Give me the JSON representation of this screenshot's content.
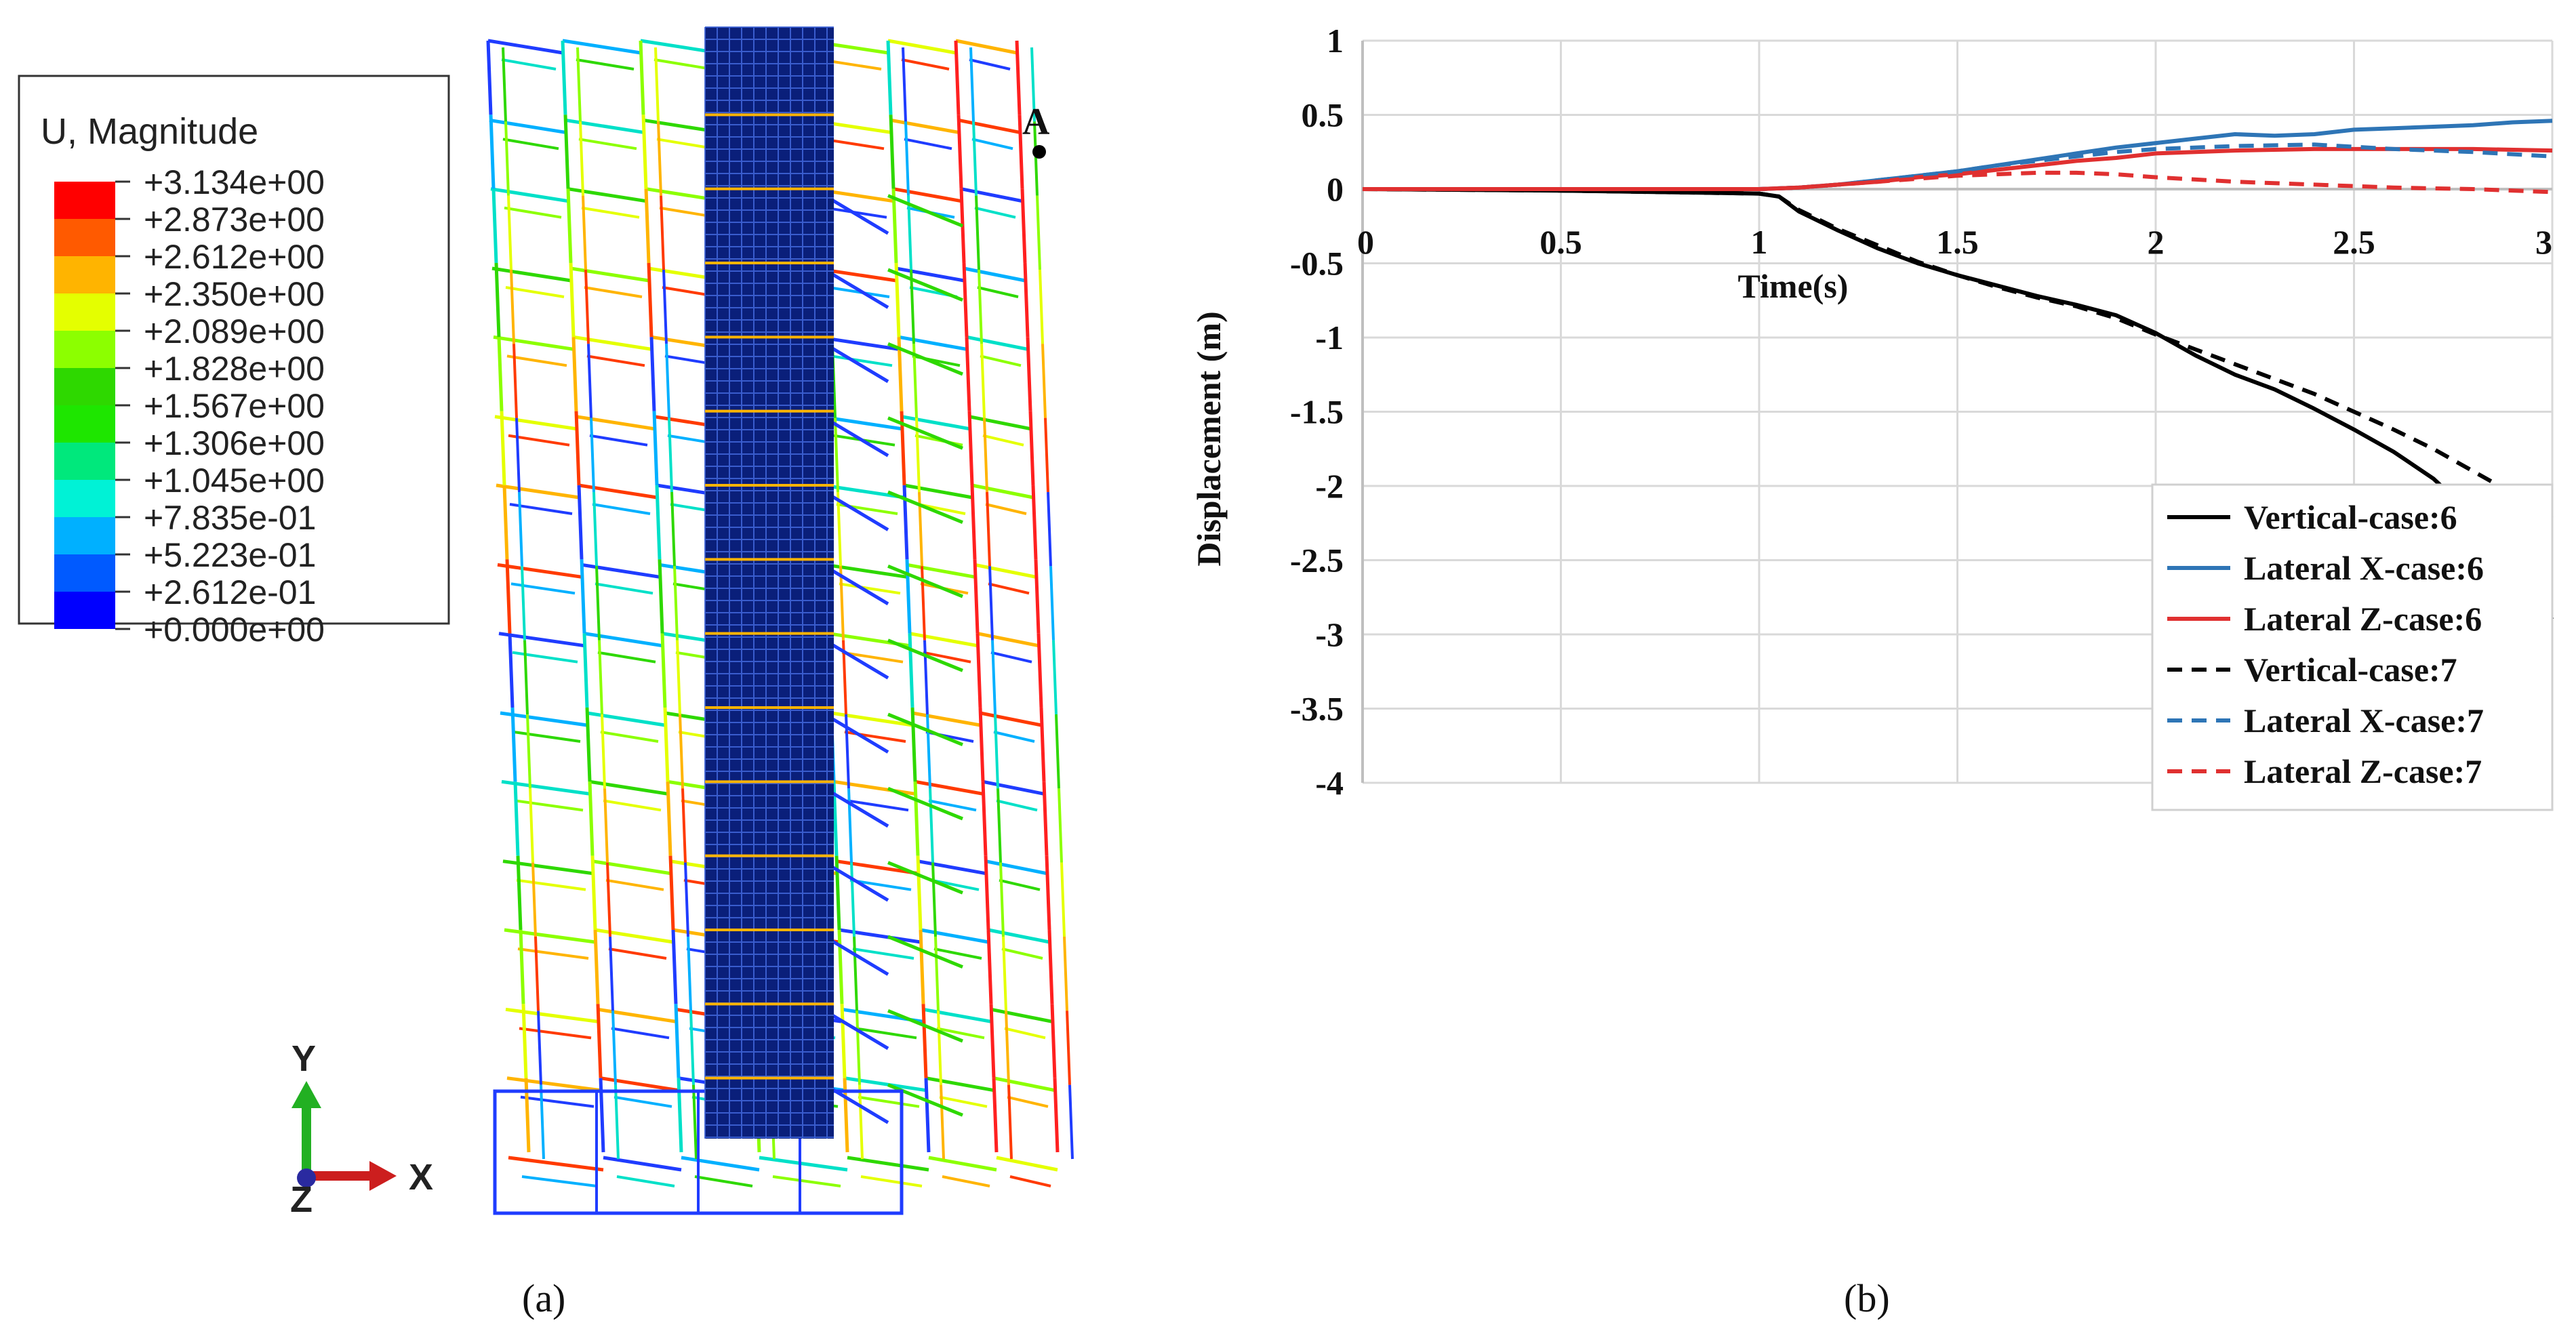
{
  "panel_a": {
    "caption": "(a)",
    "legend": {
      "title": "U, Magnitude",
      "levels": [
        "+3.134e+00",
        "+2.873e+00",
        "+2.612e+00",
        "+2.350e+00",
        "+2.089e+00",
        "+1.828e+00",
        "+1.567e+00",
        "+1.306e+00",
        "+1.045e+00",
        "+7.835e-01",
        "+5.223e-01",
        "+2.612e-01",
        "+0.000e+00"
      ],
      "colors": [
        "#ff0000",
        "#ff5a00",
        "#ffb400",
        "#e4ff00",
        "#8cff00",
        "#2ed800",
        "#1ee600",
        "#00e87c",
        "#00f2d6",
        "#00b0ff",
        "#005aff",
        "#0000ff"
      ]
    },
    "point_label": "A",
    "triad": {
      "y": "Y",
      "x": "X",
      "z": "Z"
    }
  },
  "panel_b": {
    "caption": "(b)",
    "chart_data": {
      "type": "line",
      "title": "",
      "xlabel": "Time(s)",
      "ylabel": "Displacement (m)",
      "xlim": [
        0,
        3
      ],
      "ylim": [
        -4,
        1
      ],
      "xticks": [
        "0",
        "0.5",
        "1",
        "1.5",
        "2",
        "2.5",
        "3"
      ],
      "yticks": [
        "1",
        "0.5",
        "0",
        "-0.5",
        "-1",
        "-1.5",
        "-2",
        "-2.5",
        "-3",
        "-3.5",
        "-4"
      ],
      "grid": true,
      "legend_position": "bottom-right",
      "series": [
        {
          "name": "Vertical-case:6",
          "color": "#000000",
          "dash": "solid",
          "x": [
            0,
            0.5,
            1.0,
            1.05,
            1.1,
            1.2,
            1.3,
            1.4,
            1.5,
            1.6,
            1.7,
            1.8,
            1.9,
            2.0,
            2.1,
            2.2,
            2.3,
            2.4,
            2.5,
            2.6,
            2.7,
            2.8,
            2.9,
            3.0
          ],
          "y": [
            0,
            -0.01,
            -0.03,
            -0.05,
            -0.15,
            -0.28,
            -0.4,
            -0.5,
            -0.58,
            -0.65,
            -0.72,
            -0.78,
            -0.85,
            -0.97,
            -1.12,
            -1.25,
            -1.35,
            -1.48,
            -1.62,
            -1.77,
            -1.95,
            -2.2,
            -2.55,
            -2.9
          ]
        },
        {
          "name": "Lateral X-case:6",
          "color": "#2e75b6",
          "dash": "solid",
          "x": [
            0,
            0.5,
            1.0,
            1.1,
            1.2,
            1.3,
            1.4,
            1.5,
            1.6,
            1.7,
            1.8,
            1.9,
            2.0,
            2.1,
            2.2,
            2.3,
            2.4,
            2.5,
            2.6,
            2.7,
            2.8,
            2.9,
            3.0
          ],
          "y": [
            0,
            0,
            0,
            0.01,
            0.03,
            0.06,
            0.09,
            0.12,
            0.16,
            0.2,
            0.24,
            0.28,
            0.31,
            0.34,
            0.37,
            0.36,
            0.37,
            0.4,
            0.41,
            0.42,
            0.43,
            0.45,
            0.46
          ]
        },
        {
          "name": "Lateral Z-case:6",
          "color": "#e03030",
          "dash": "solid",
          "x": [
            0,
            0.5,
            1.0,
            1.1,
            1.2,
            1.3,
            1.4,
            1.5,
            1.6,
            1.7,
            1.8,
            1.9,
            2.0,
            2.2,
            2.4,
            2.6,
            2.8,
            3.0
          ],
          "y": [
            0,
            0,
            0,
            0.01,
            0.03,
            0.05,
            0.08,
            0.1,
            0.13,
            0.16,
            0.19,
            0.21,
            0.24,
            0.26,
            0.27,
            0.27,
            0.27,
            0.26
          ]
        },
        {
          "name": "Vertical-case:7",
          "color": "#000000",
          "dash": "dashed",
          "x": [
            0,
            0.5,
            1.0,
            1.05,
            1.1,
            1.2,
            1.3,
            1.4,
            1.5,
            1.6,
            1.7,
            1.8,
            1.9,
            2.0,
            2.1,
            2.2,
            2.3,
            2.4,
            2.5,
            2.6,
            2.7,
            2.8,
            2.9,
            3.0
          ],
          "y": [
            0,
            -0.01,
            -0.03,
            -0.05,
            -0.14,
            -0.27,
            -0.38,
            -0.49,
            -0.58,
            -0.66,
            -0.73,
            -0.79,
            -0.87,
            -0.98,
            -1.08,
            -1.18,
            -1.28,
            -1.38,
            -1.5,
            -1.62,
            -1.75,
            -1.9,
            -2.05,
            -2.22
          ]
        },
        {
          "name": "Lateral X-case:7",
          "color": "#2e75b6",
          "dash": "dashed",
          "x": [
            0,
            0.5,
            1.0,
            1.1,
            1.2,
            1.3,
            1.4,
            1.5,
            1.6,
            1.7,
            1.8,
            1.9,
            2.0,
            2.2,
            2.4,
            2.6,
            2.8,
            3.0
          ],
          "y": [
            0,
            0,
            0,
            0.01,
            0.03,
            0.06,
            0.09,
            0.12,
            0.16,
            0.19,
            0.22,
            0.25,
            0.27,
            0.29,
            0.3,
            0.27,
            0.25,
            0.22
          ]
        },
        {
          "name": "Lateral Z-case:7",
          "color": "#e03030",
          "dash": "dashed",
          "x": [
            0,
            0.5,
            1.0,
            1.1,
            1.2,
            1.3,
            1.4,
            1.5,
            1.6,
            1.7,
            1.8,
            1.9,
            2.0,
            2.2,
            2.4,
            2.6,
            2.8,
            3.0
          ],
          "y": [
            0,
            0,
            0,
            0.01,
            0.03,
            0.05,
            0.07,
            0.09,
            0.1,
            0.11,
            0.11,
            0.1,
            0.08,
            0.05,
            0.03,
            0.01,
            0.0,
            -0.02
          ]
        }
      ]
    }
  }
}
